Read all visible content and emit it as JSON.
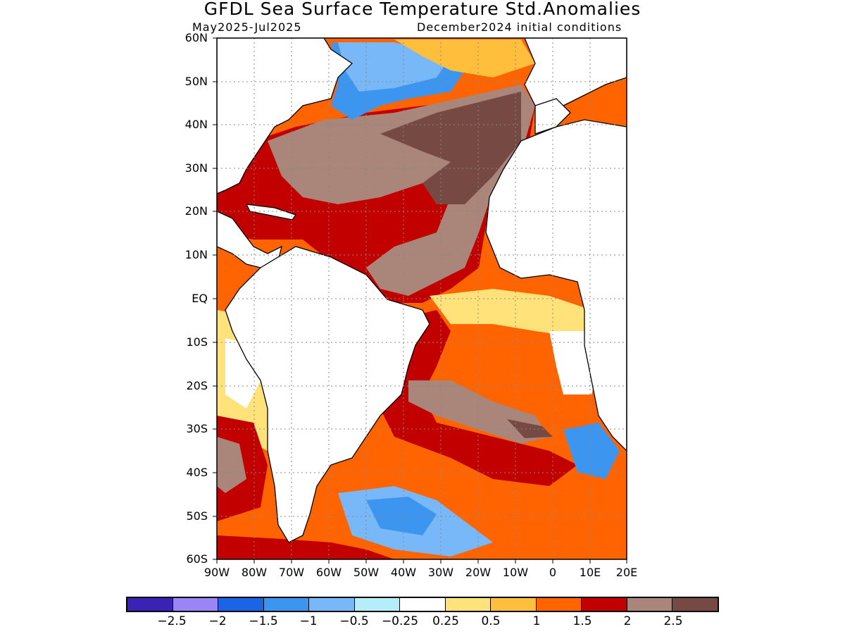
{
  "title": "GFDL Sea Surface Temperature Std.Anomalies",
  "subtitle_left": "May2025-Jul2025",
  "subtitle_right": "December2024 initial conditions",
  "lat_labels": [
    "60N",
    "50N",
    "40N",
    "30N",
    "20N",
    "10N",
    "EQ",
    "10S",
    "20S",
    "30S",
    "40S",
    "50S",
    "60S"
  ],
  "lon_labels": [
    "90W",
    "80W",
    "70W",
    "60W",
    "50W",
    "40W",
    "30W",
    "20W",
    "10W",
    "0",
    "10E",
    "20E"
  ],
  "colorbar": {
    "colors": [
      "#3a22b4",
      "#9b84f5",
      "#1c64e6",
      "#3c96f0",
      "#78b7f8",
      "#b5eefa",
      "#ffffff",
      "#ffe27a",
      "#ffbe3c",
      "#ff6400",
      "#c30000",
      "#aa857a",
      "#764a42"
    ],
    "labels": [
      "−2.5",
      "−2",
      "−1.5",
      "−1",
      "−0.5",
      "−0.25",
      "0.25",
      "0.5",
      "1",
      "1.5",
      "2",
      "2.5"
    ]
  }
}
